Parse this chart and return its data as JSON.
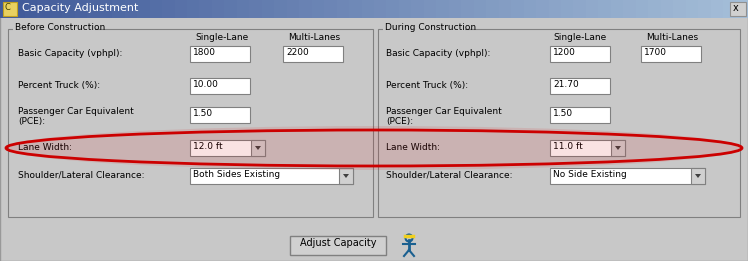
{
  "title": "Capacity Adjustment",
  "title_bar_color_left": "#4060a0",
  "title_bar_color_right": "#a0c0e0",
  "title_text_color": "#ffffff",
  "bg_color": "#c8c8c8",
  "panel_bg": "#c8c8c8",
  "box_bg": "#ffffff",
  "box_border": "#808080",
  "text_color": "#000000",
  "group_border": "#808080",
  "before_section_title": "Before Construction",
  "during_section_title": "During Construction",
  "col_headers": [
    "Single-Lane",
    "Multi-Lanes"
  ],
  "before_basic_single": "1800",
  "before_basic_multi": "2200",
  "before_pct_truck": "10.00",
  "before_pce": "1.50",
  "before_lane_width": "12.0 ft",
  "before_shoulder": "Both Sides Existing",
  "during_basic_single": "1200",
  "during_basic_multi": "1700",
  "during_pct_truck": "21.70",
  "during_pce": "1.50",
  "during_lane_width": "11.0 ft",
  "during_shoulder": "No Side Existing",
  "button_label": "Adjust Capacity",
  "ellipse_color": "#cc0000",
  "ellipse_linewidth": 2.0
}
